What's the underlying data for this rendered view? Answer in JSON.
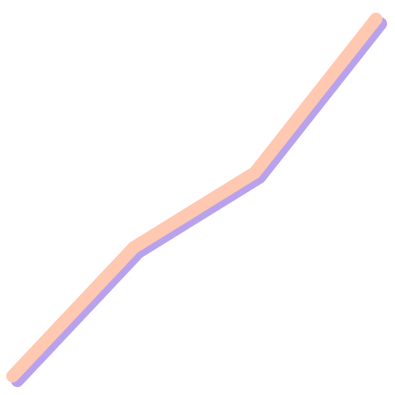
{
  "chart_data": {
    "type": "line",
    "title": "",
    "xlabel": "",
    "ylabel": "",
    "grid": false,
    "legend": "none",
    "x": [
      0,
      1,
      2,
      3
    ],
    "xlim": [
      0,
      3
    ],
    "ylim": [
      0,
      100
    ],
    "series": [
      {
        "values": [
          0,
          36,
          57,
          100
        ],
        "color": "#ffc8b0",
        "shadow_color": "#b8a2ee"
      }
    ]
  }
}
